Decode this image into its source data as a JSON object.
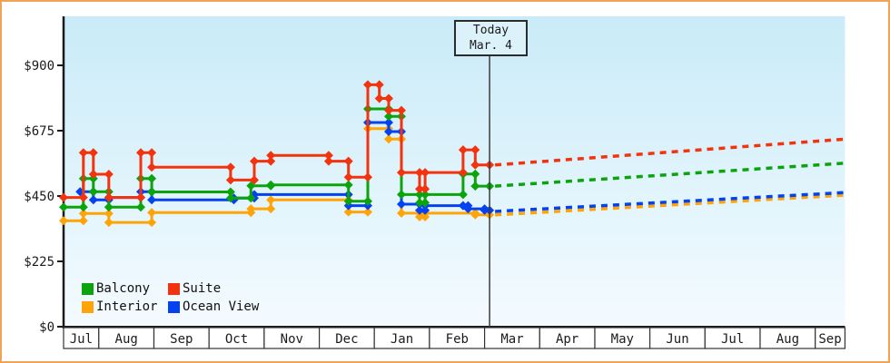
{
  "today_box": {
    "line1": "Today",
    "line2": "Mar. 4"
  },
  "colors": {
    "frame_border": "#F0A455",
    "axis": "#1a1a1a",
    "today_line": "#3c3c3c",
    "plot_bg_top": "#C9EBF8",
    "plot_bg_bottom": "#F4FBFF",
    "month_cell_bg": "#FFFFFF",
    "text": "#1b1b1b"
  },
  "y_axis": {
    "tick_values": [
      0,
      225,
      450,
      675,
      900
    ],
    "tick_labels": [
      "$0",
      "$225",
      "$450",
      "$675",
      "$900"
    ]
  },
  "x_axis": {
    "month_labels": [
      "Jul",
      "Aug",
      "Sep",
      "Oct",
      "Nov",
      "Dec",
      "Jan",
      "Feb",
      "Mar",
      "Apr",
      "May",
      "Jun",
      "Jul",
      "Aug",
      "Sep"
    ]
  },
  "legend": {
    "items": [
      {
        "label": "Balcony",
        "color": "#0CA40C"
      },
      {
        "label": "Suite",
        "color": "#F2330D"
      },
      {
        "label": "Interior",
        "color": "#FFA408"
      },
      {
        "label": "Ocean View",
        "color": "#0442F0"
      }
    ]
  },
  "chart_data": {
    "type": "line",
    "title": "",
    "x_unit": "t = months since July 1 of first year (Jul 1 = 0, Aug 1 = 1, ... Sep 1 next year = 14)",
    "t_range": [
      0.36,
      14.54
    ],
    "today_t": 8.09,
    "today_label": "Mar. 4",
    "ylim": [
      0,
      900
    ],
    "y_ticks": [
      0,
      225,
      450,
      675,
      900
    ],
    "grid": false,
    "legend_position": "bottom-left-inside",
    "series": [
      {
        "name": "Interior",
        "color": "#FFA408",
        "steps": [
          [
            0.36,
            365
          ],
          [
            0.72,
            390
          ],
          [
            1.18,
            359
          ],
          [
            1.96,
            393
          ],
          [
            3.76,
            406
          ],
          [
            4.12,
            437
          ],
          [
            5.53,
            395
          ],
          [
            5.88,
            682
          ],
          [
            6.26,
            646
          ],
          [
            6.49,
            391
          ],
          [
            6.82,
            378
          ],
          [
            6.92,
            391
          ],
          [
            7.83,
            385
          ]
        ],
        "projection": [
          [
            8.09,
            385
          ],
          [
            14.54,
            453
          ]
        ]
      },
      {
        "name": "Ocean View",
        "color": "#0442F0",
        "steps": [
          [
            0.66,
            465
          ],
          [
            0.9,
            437
          ],
          [
            1.18,
            445
          ],
          [
            1.76,
            465
          ],
          [
            1.96,
            437
          ],
          [
            3.45,
            443
          ],
          [
            3.82,
            455
          ],
          [
            5.53,
            417
          ],
          [
            5.88,
            703
          ],
          [
            6.26,
            672
          ],
          [
            6.49,
            422
          ],
          [
            6.82,
            401
          ],
          [
            6.92,
            417
          ],
          [
            7.61,
            417
          ],
          [
            7.7,
            406
          ],
          [
            8.0,
            401
          ]
        ],
        "projection": [
          [
            8.09,
            397
          ],
          [
            14.54,
            462
          ]
        ]
      },
      {
        "name": "Balcony",
        "color": "#0CA40C",
        "steps": [
          [
            0.36,
            412
          ],
          [
            0.72,
            510
          ],
          [
            0.9,
            465
          ],
          [
            1.18,
            412
          ],
          [
            1.76,
            510
          ],
          [
            1.96,
            464
          ],
          [
            3.39,
            443
          ],
          [
            3.76,
            485
          ],
          [
            4.12,
            488
          ],
          [
            5.53,
            432
          ],
          [
            5.88,
            750
          ],
          [
            6.26,
            724
          ],
          [
            6.49,
            455
          ],
          [
            6.82,
            427
          ],
          [
            6.92,
            455
          ],
          [
            7.61,
            526
          ],
          [
            7.83,
            484
          ]
        ],
        "projection": [
          [
            8.09,
            484
          ],
          [
            14.54,
            563
          ]
        ]
      },
      {
        "name": "Suite",
        "color": "#F2330D",
        "steps": [
          [
            0.36,
            445
          ],
          [
            0.72,
            599
          ],
          [
            0.9,
            525
          ],
          [
            1.18,
            445
          ],
          [
            1.76,
            599
          ],
          [
            1.96,
            549
          ],
          [
            3.39,
            505
          ],
          [
            3.82,
            570
          ],
          [
            4.12,
            590
          ],
          [
            5.17,
            570
          ],
          [
            5.53,
            515
          ],
          [
            5.88,
            833
          ],
          [
            6.09,
            786
          ],
          [
            6.26,
            745
          ],
          [
            6.49,
            531
          ],
          [
            6.82,
            474
          ],
          [
            6.92,
            531
          ],
          [
            7.61,
            609
          ],
          [
            7.83,
            557
          ]
        ],
        "projection": [
          [
            8.09,
            557
          ],
          [
            14.54,
            646
          ]
        ]
      }
    ]
  }
}
